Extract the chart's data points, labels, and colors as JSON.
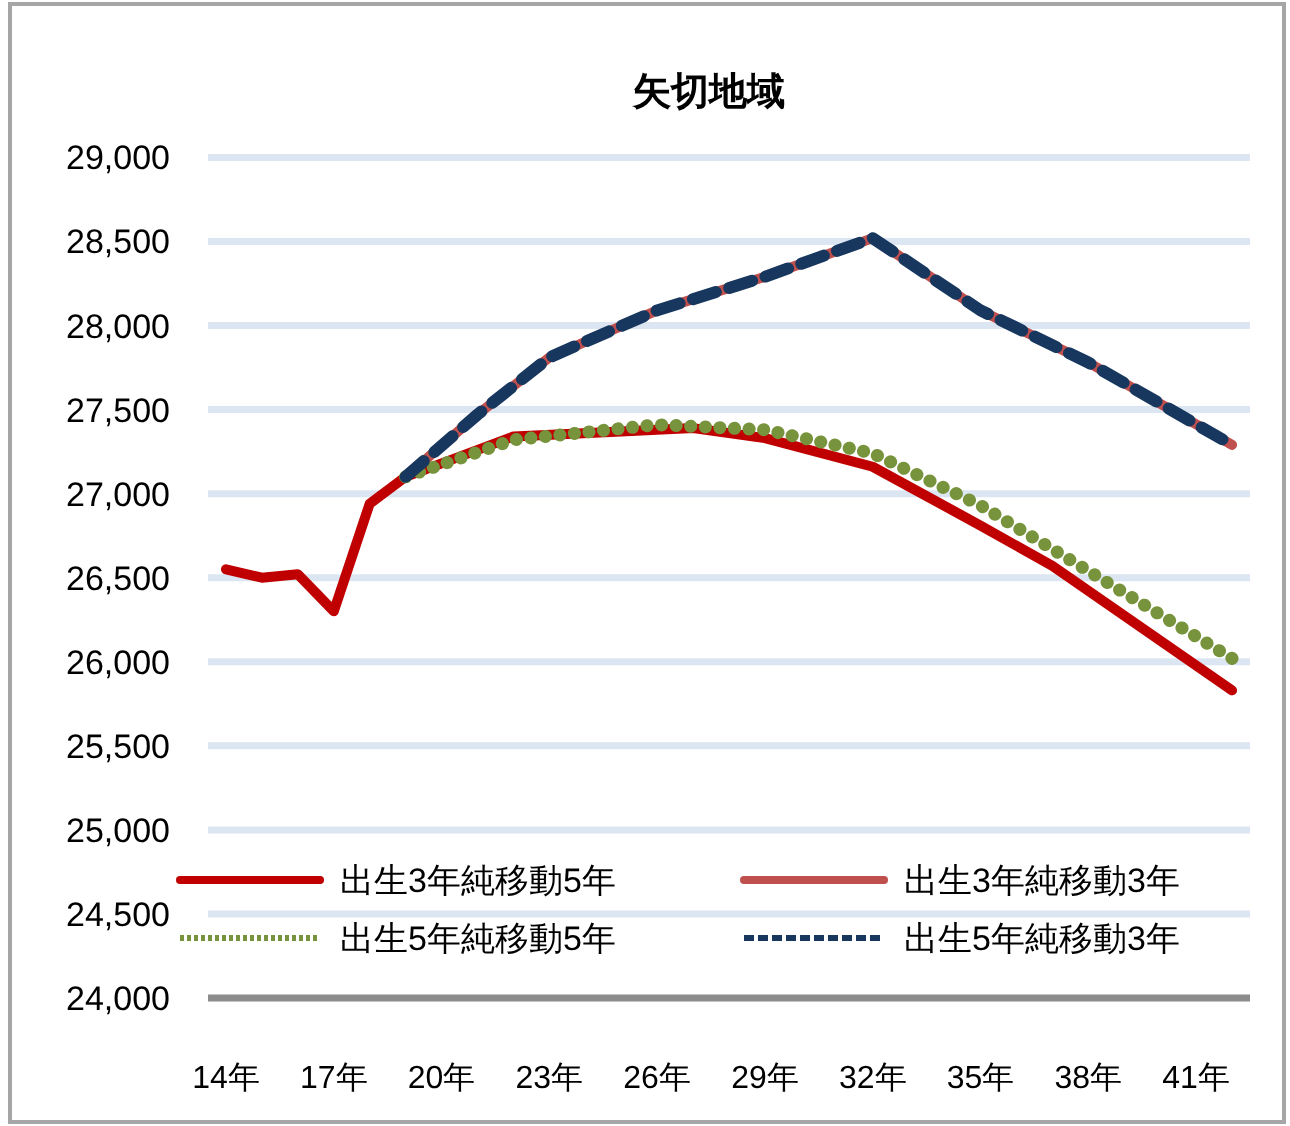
{
  "chart_data": {
    "type": "line",
    "title": "矢切地域",
    "xlim": [
      13.5,
      42.5
    ],
    "xticks": [
      {
        "value": 14,
        "label": "14年"
      },
      {
        "value": 17,
        "label": "17年"
      },
      {
        "value": 20,
        "label": "20年"
      },
      {
        "value": 23,
        "label": "23年"
      },
      {
        "value": 26,
        "label": "26年"
      },
      {
        "value": 29,
        "label": "29年"
      },
      {
        "value": 32,
        "label": "32年"
      },
      {
        "value": 35,
        "label": "35年"
      },
      {
        "value": 38,
        "label": "38年"
      },
      {
        "value": 41,
        "label": "41年"
      }
    ],
    "ylim": [
      24000,
      29000
    ],
    "yticks": [
      {
        "value": 24000,
        "label": "24,000"
      },
      {
        "value": 24500,
        "label": "24,500"
      },
      {
        "value": 25000,
        "label": "25,000"
      },
      {
        "value": 25500,
        "label": "25,500"
      },
      {
        "value": 26000,
        "label": "26,000"
      },
      {
        "value": 26500,
        "label": "26,500"
      },
      {
        "value": 27000,
        "label": "27,000"
      },
      {
        "value": 27500,
        "label": "27,500"
      },
      {
        "value": 28000,
        "label": "28,000"
      },
      {
        "value": 28500,
        "label": "28,500"
      },
      {
        "value": 29000,
        "label": "29,000"
      }
    ],
    "grid": "y",
    "legend": "bottom",
    "marker": "none",
    "series": [
      {
        "name": "出生3年純移動5年",
        "color": "#c00000",
        "line_style": "solid",
        "x": [
          14,
          15,
          16,
          17,
          18,
          19,
          22,
          25,
          27,
          29,
          32,
          35,
          37,
          42
        ],
        "values": [
          26550,
          26500,
          26520,
          26300,
          26940,
          27100,
          27340,
          27370,
          27390,
          27330,
          27160,
          26810,
          26570,
          25830
        ]
      },
      {
        "name": "出生3年純移動3年",
        "color": "#c0504d",
        "line_style": "solid",
        "x": [
          19,
          21,
          23,
          26,
          29,
          32,
          35,
          38,
          42
        ],
        "values": [
          27100,
          27470,
          27810,
          28090,
          28290,
          28520,
          28090,
          27780,
          27290
        ]
      },
      {
        "name": "出生5年純移動5年",
        "color": "#77933c",
        "line_style": "dotted",
        "x": [
          19,
          22,
          26,
          29,
          32,
          35,
          37,
          42
        ],
        "values": [
          27100,
          27320,
          27410,
          27380,
          27240,
          26930,
          26670,
          26020
        ]
      },
      {
        "name": "出生5年純移動3年",
        "color": "#17375e",
        "line_style": "dashed",
        "x": [
          19,
          21,
          23,
          26,
          29,
          32,
          35,
          38,
          42
        ],
        "values": [
          27100,
          27470,
          27810,
          28090,
          28290,
          28520,
          28090,
          27780,
          27290
        ]
      }
    ]
  }
}
